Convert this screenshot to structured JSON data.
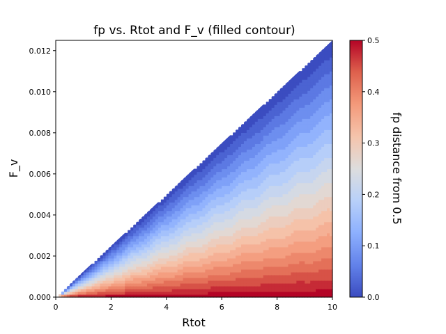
{
  "chart_data": {
    "type": "contour",
    "title": "fp vs. Rtot and F_v (filled contour)",
    "xlabel": "Rtot",
    "ylabel": "F_v",
    "xlim": [
      0,
      10
    ],
    "ylim": [
      0,
      0.0125
    ],
    "x_ticks": [
      0,
      2,
      4,
      6,
      8,
      10
    ],
    "x_tick_labels": [
      "0",
      "2",
      "4",
      "6",
      "8",
      "10"
    ],
    "y_ticks": [
      0,
      0.002,
      0.004,
      0.006,
      0.008,
      0.01,
      0.012
    ],
    "y_tick_labels": [
      "0.000",
      "0.002",
      "0.004",
      "0.006",
      "0.008",
      "0.010",
      "0.012"
    ],
    "domain": "region below line F_v = 0.00125 * Rtot",
    "colorbar": {
      "label": "fp distance from 0.5",
      "range": [
        0.0,
        0.5
      ],
      "ticks": [
        0.0,
        0.1,
        0.2,
        0.3,
        0.4,
        0.5
      ],
      "tick_labels": [
        "0.0",
        "0.1",
        "0.2",
        "0.3",
        "0.4",
        "0.5"
      ],
      "colormap": "coolwarm"
    },
    "grid": false
  },
  "colors": {
    "cool_end": "#3b4cc0",
    "mid": "#dddddd",
    "warm_end": "#b40426"
  }
}
